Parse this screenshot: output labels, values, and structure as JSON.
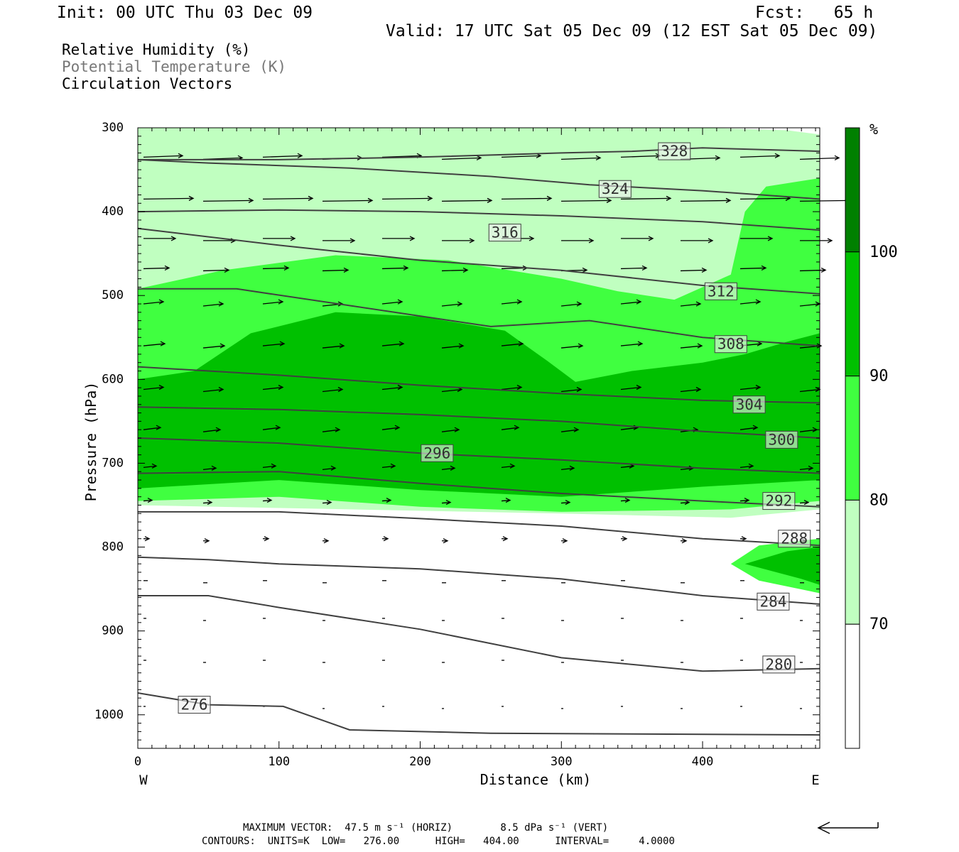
{
  "header": {
    "init": "Init: 00 UTC Thu 03 Dec 09",
    "fcst": "Fcst:   65 h",
    "valid": "Valid: 17 UTC Sat 05 Dec 09 (12 EST Sat 05 Dec 09)"
  },
  "legend": {
    "rh": "Relative Humidity (%)",
    "theta": "Potential Temperature (K)",
    "vectors": "Circulation Vectors"
  },
  "footer": {
    "max_vector": "MAXIMUM VECTOR:  47.5 m s⁻¹ (HORIZ)        8.5 dPa s⁻¹ (VERT)",
    "contours": "CONTOURS:  UNITS=K  LOW=   276.00      HIGH=   404.00      INTERVAL=     4.0000"
  },
  "colors": {
    "rh_70_80": "#c0ffc0",
    "rh_80_90": "#40ff40",
    "rh_90_100": "#00c000",
    "rh_100": "#008000",
    "contour": "#404040"
  },
  "chart_data": {
    "type": "contour",
    "xlabel": "Distance (km)",
    "ylabel": "Pressure (hPa)",
    "x_ticks": [
      0,
      100,
      200,
      300,
      400
    ],
    "y_ticks": [
      300,
      400,
      500,
      600,
      700,
      800,
      900,
      1000
    ],
    "xlim": [
      0,
      483
    ],
    "ylim": [
      1040,
      300
    ],
    "x_end_labels": {
      "left": "W",
      "right": "E"
    },
    "colorbar": {
      "unit": "%",
      "ticks": [
        70,
        80,
        90,
        100
      ]
    },
    "shading": {
      "rh_70": [
        [
          0,
          300
        ],
        [
          120,
          300
        ],
        [
          250,
          300
        ],
        [
          400,
          300
        ],
        [
          460,
          303
        ],
        [
          483,
          308
        ],
        [
          483,
          755
        ],
        [
          420,
          765
        ],
        [
          300,
          760
        ],
        [
          150,
          755
        ],
        [
          0,
          750
        ]
      ],
      "rh_80": [
        [
          0,
          492
        ],
        [
          60,
          470
        ],
        [
          140,
          452
        ],
        [
          220,
          458
        ],
        [
          300,
          480
        ],
        [
          340,
          495
        ],
        [
          380,
          505
        ],
        [
          420,
          475
        ],
        [
          430,
          400
        ],
        [
          445,
          370
        ],
        [
          483,
          360
        ],
        [
          483,
          745
        ],
        [
          420,
          755
        ],
        [
          300,
          758
        ],
        [
          200,
          752
        ],
        [
          100,
          740
        ],
        [
          0,
          745
        ]
      ],
      "rh_90": [
        [
          0,
          600
        ],
        [
          40,
          590
        ],
        [
          80,
          545
        ],
        [
          140,
          520
        ],
        [
          200,
          525
        ],
        [
          260,
          542
        ],
        [
          290,
          578
        ],
        [
          310,
          603
        ],
        [
          350,
          590
        ],
        [
          400,
          580
        ],
        [
          430,
          570
        ],
        [
          460,
          555
        ],
        [
          483,
          545
        ],
        [
          483,
          720
        ],
        [
          400,
          728
        ],
        [
          300,
          740
        ],
        [
          200,
          732
        ],
        [
          100,
          720
        ],
        [
          0,
          730
        ]
      ],
      "rh_80_low": [
        [
          420,
          820
        ],
        [
          440,
          798
        ],
        [
          483,
          790
        ],
        [
          483,
          855
        ],
        [
          440,
          840
        ]
      ],
      "rh_90_low": [
        [
          430,
          820
        ],
        [
          460,
          805
        ],
        [
          483,
          800
        ],
        [
          483,
          845
        ],
        [
          470,
          838
        ]
      ]
    },
    "isentropes": [
      {
        "label": "328",
        "points": [
          [
            0,
            338
          ],
          [
            100,
            338
          ],
          [
            200,
            335
          ],
          [
            300,
            330
          ],
          [
            350,
            328
          ],
          [
            400,
            324
          ],
          [
            483,
            328
          ]
        ],
        "label_at": [
          380,
          328
        ]
      },
      {
        "label": "324",
        "points": [
          [
            0,
            338
          ],
          [
            50,
            342
          ],
          [
            150,
            348
          ],
          [
            250,
            358
          ],
          [
            320,
            368
          ],
          [
            400,
            375
          ],
          [
            483,
            385
          ]
        ],
        "label_at": [
          338,
          373
        ]
      },
      {
        "label": "316",
        "points": [
          [
            0,
            400
          ],
          [
            100,
            398
          ],
          [
            200,
            400
          ],
          [
            300,
            405
          ],
          [
            400,
            412
          ],
          [
            483,
            422
          ]
        ],
        "label_at": [
          260,
          425
        ]
      },
      {
        "label": "312",
        "points": [
          [
            0,
            420
          ],
          [
            100,
            440
          ],
          [
            200,
            458
          ],
          [
            300,
            470
          ],
          [
            400,
            488
          ],
          [
            483,
            498
          ]
        ],
        "label_at": [
          413,
          495
        ]
      },
      {
        "label": "308",
        "points": [
          [
            0,
            492
          ],
          [
            70,
            492
          ],
          [
            150,
            512
          ],
          [
            250,
            537
          ],
          [
            320,
            530
          ],
          [
            400,
            550
          ],
          [
            483,
            560
          ]
        ],
        "label_at": [
          420,
          558
        ]
      },
      {
        "label": "304",
        "points": [
          [
            0,
            585
          ],
          [
            100,
            595
          ],
          [
            200,
            607
          ],
          [
            300,
            617
          ],
          [
            400,
            625
          ],
          [
            483,
            628
          ]
        ],
        "label_at": [
          433,
          630
        ]
      },
      {
        "label": "300",
        "points": [
          [
            0,
            633
          ],
          [
            100,
            636
          ],
          [
            200,
            642
          ],
          [
            300,
            650
          ],
          [
            400,
            662
          ],
          [
            483,
            670
          ]
        ],
        "label_at": [
          456,
          672
        ]
      },
      {
        "label": "296",
        "points": [
          [
            0,
            670
          ],
          [
            100,
            676
          ],
          [
            200,
            688
          ],
          [
            300,
            696
          ],
          [
            400,
            706
          ],
          [
            483,
            712
          ]
        ],
        "label_at": [
          212,
          688
        ]
      },
      {
        "label": "292",
        "points": [
          [
            0,
            712
          ],
          [
            100,
            710
          ],
          [
            200,
            724
          ],
          [
            300,
            736
          ],
          [
            400,
            745
          ],
          [
            483,
            752
          ]
        ],
        "label_at": [
          454,
          745
        ]
      },
      {
        "label": "288",
        "points": [
          [
            0,
            758
          ],
          [
            100,
            758
          ],
          [
            200,
            766
          ],
          [
            300,
            775
          ],
          [
            400,
            790
          ],
          [
            483,
            798
          ]
        ],
        "label_at": [
          465,
          790
        ]
      },
      {
        "label": "284",
        "points": [
          [
            0,
            812
          ],
          [
            50,
            815
          ],
          [
            100,
            820
          ],
          [
            200,
            826
          ],
          [
            300,
            838
          ],
          [
            400,
            858
          ],
          [
            483,
            868
          ]
        ],
        "label_at": [
          450,
          865
        ]
      },
      {
        "label": "280",
        "points": [
          [
            0,
            858
          ],
          [
            50,
            858
          ],
          [
            100,
            872
          ],
          [
            200,
            898
          ],
          [
            300,
            932
          ],
          [
            400,
            948
          ],
          [
            483,
            945
          ]
        ],
        "label_at": [
          454,
          940
        ]
      },
      {
        "label": "276",
        "points": [
          [
            0,
            974
          ],
          [
            50,
            988
          ],
          [
            103,
            990
          ],
          [
            150,
            1018
          ],
          [
            250,
            1022
          ],
          [
            483,
            1024
          ]
        ],
        "label_at": [
          40,
          988
        ]
      }
    ],
    "min_contour": 276,
    "max_contour": 404,
    "interval": 4
  }
}
